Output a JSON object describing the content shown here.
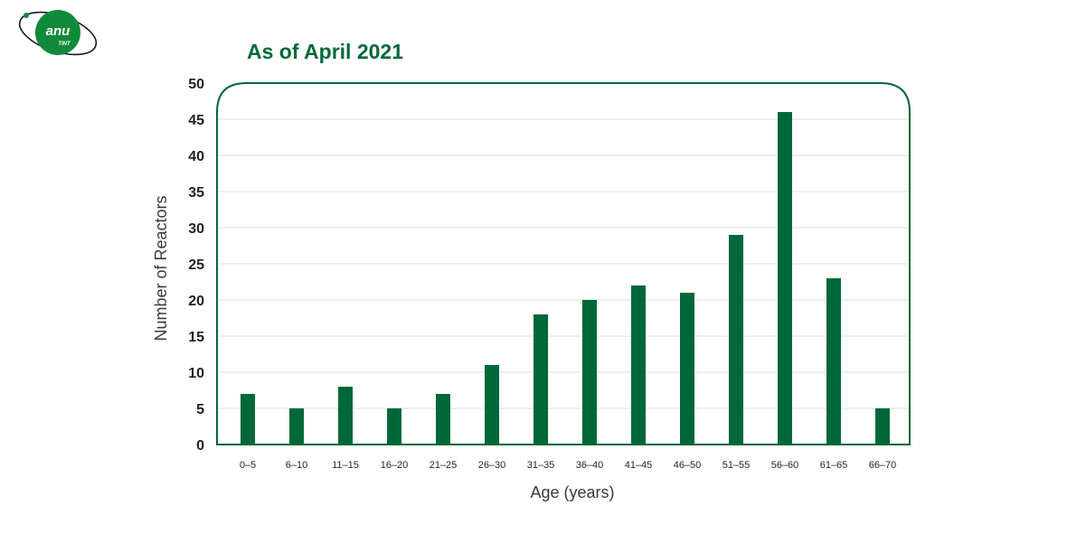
{
  "logo": {
    "line1": "anu",
    "line2": "TINT"
  },
  "chart_data": {
    "type": "bar",
    "title": "As of April 2021",
    "xlabel": "Age (years)",
    "ylabel": "Number of Reactors",
    "ylim": [
      0,
      50
    ],
    "yticks": [
      0,
      5,
      10,
      15,
      20,
      25,
      30,
      35,
      40,
      45,
      50
    ],
    "grid": true,
    "categories": [
      "0–5",
      "6–10",
      "11–15",
      "16–20",
      "21–25",
      "26–30",
      "31–35",
      "36–40",
      "41–45",
      "46–50",
      "51–55",
      "56–60",
      "61–65",
      "66–70"
    ],
    "values": [
      7,
      5,
      8,
      5,
      7,
      11,
      18,
      20,
      22,
      21,
      29,
      46,
      23,
      5
    ],
    "bar_color": "#006838"
  }
}
